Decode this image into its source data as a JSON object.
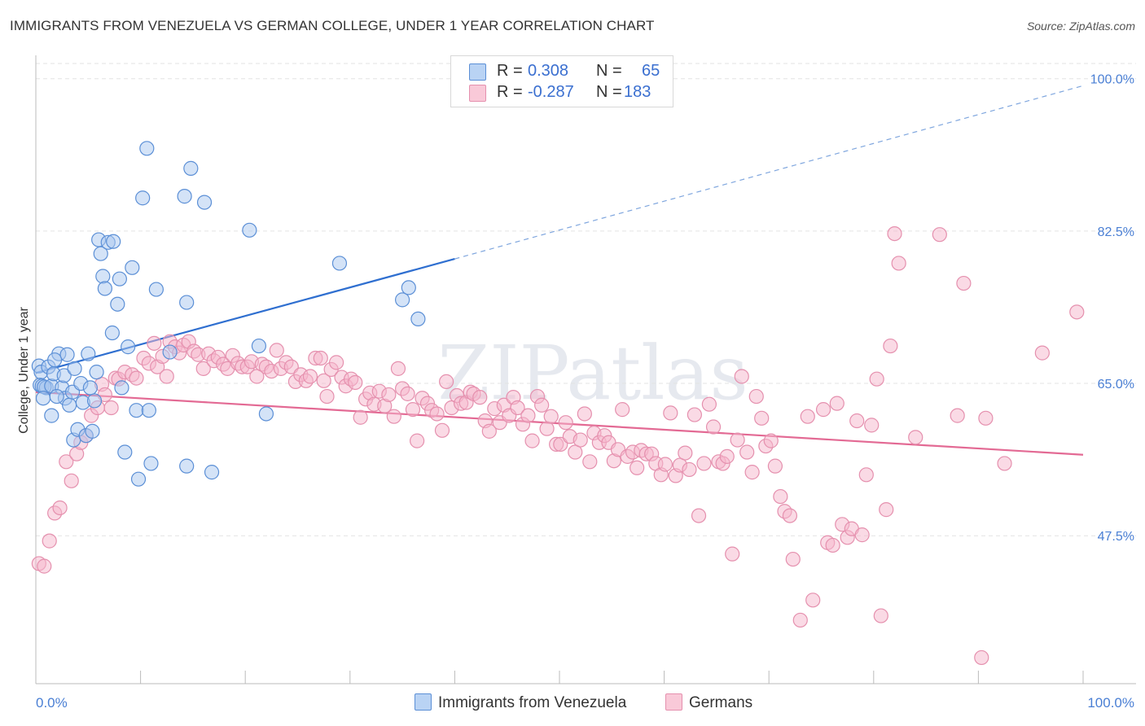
{
  "header": {
    "title": "IMMIGRANTS FROM VENEZUELA VS GERMAN COLLEGE, UNDER 1 YEAR CORRELATION CHART",
    "source": "Source: ZipAtlas.com"
  },
  "legend": {
    "r_label": "R =",
    "n_label": "N =",
    "rows": [
      {
        "r": "0.308",
        "n": "65"
      },
      {
        "r": "-0.287",
        "n": "183"
      }
    ]
  },
  "bottom_legend": [
    "Immigrants from Venezuela",
    "Germans"
  ],
  "colors": {
    "blue_fill": "#a9c8f0",
    "blue_stroke": "#5b8fd6",
    "blue_line": "#2f6fd0",
    "pink_fill": "#f6b6cb",
    "pink_stroke": "#e590ae",
    "pink_line": "#e36a94",
    "tick_text": "#4a7fd4"
  },
  "chart_data": {
    "type": "scatter",
    "title": "IMMIGRANTS FROM VENEZUELA VS GERMAN COLLEGE, UNDER 1 YEAR CORRELATION CHART",
    "xlabel": "",
    "ylabel": "College, Under 1 year",
    "xlim": [
      0,
      100
    ],
    "ylim": [
      30.5,
      102.5
    ],
    "x_tick_labels": [
      "0.0%",
      "100.0%"
    ],
    "y_ticks": [
      47.5,
      65.0,
      82.5,
      100.0
    ],
    "y_tick_labels": [
      "47.5%",
      "65.0%",
      "82.5%",
      "100.0%"
    ],
    "grid": true,
    "watermark": "ZIPatlas",
    "series": [
      {
        "name": "Immigrants from Venezuela",
        "r": 0.308,
        "n": 65,
        "trend": {
          "x": [
            0,
            40
          ],
          "y": [
            66.2,
            79.3
          ],
          "dashed_to": [
            100,
            99.2
          ]
        },
        "points": [
          [
            0.3,
            67.0
          ],
          [
            0.5,
            66.3
          ],
          [
            0.4,
            64.8
          ],
          [
            0.6,
            64.7
          ],
          [
            1.0,
            64.5
          ],
          [
            0.8,
            64.6
          ],
          [
            1.2,
            66.9
          ],
          [
            1.5,
            64.7
          ],
          [
            1.7,
            66.1
          ],
          [
            1.5,
            61.3
          ],
          [
            2.2,
            68.4
          ],
          [
            1.8,
            67.7
          ],
          [
            2.5,
            64.5
          ],
          [
            2.7,
            65.9
          ],
          [
            2.8,
            63.3
          ],
          [
            3.0,
            68.3
          ],
          [
            3.2,
            62.5
          ],
          [
            3.5,
            64.0
          ],
          [
            3.7,
            66.7
          ],
          [
            3.6,
            58.5
          ],
          [
            4.0,
            59.7
          ],
          [
            4.3,
            65.0
          ],
          [
            4.5,
            62.8
          ],
          [
            4.8,
            59.0
          ],
          [
            5.0,
            68.4
          ],
          [
            5.2,
            64.5
          ],
          [
            5.4,
            59.5
          ],
          [
            5.6,
            63.0
          ],
          [
            6.0,
            81.5
          ],
          [
            6.2,
            79.9
          ],
          [
            6.4,
            77.3
          ],
          [
            6.6,
            75.9
          ],
          [
            6.9,
            81.2
          ],
          [
            7.4,
            81.3
          ],
          [
            7.3,
            70.8
          ],
          [
            8.0,
            77.0
          ],
          [
            7.8,
            74.1
          ],
          [
            8.2,
            64.5
          ],
          [
            8.5,
            57.1
          ],
          [
            8.8,
            69.2
          ],
          [
            9.2,
            78.3
          ],
          [
            9.8,
            54.0
          ],
          [
            9.6,
            61.9
          ],
          [
            10.2,
            86.3
          ],
          [
            10.6,
            92.0
          ],
          [
            10.8,
            61.9
          ],
          [
            11.0,
            55.8
          ],
          [
            11.5,
            75.8
          ],
          [
            12.8,
            68.6
          ],
          [
            14.2,
            86.5
          ],
          [
            14.4,
            55.5
          ],
          [
            14.4,
            74.3
          ],
          [
            14.8,
            89.7
          ],
          [
            16.1,
            85.8
          ],
          [
            16.8,
            54.8
          ],
          [
            20.4,
            82.6
          ],
          [
            21.3,
            69.3
          ],
          [
            22.0,
            61.5
          ],
          [
            29.0,
            78.8
          ],
          [
            35.0,
            74.6
          ],
          [
            35.6,
            76.0
          ],
          [
            36.5,
            72.4
          ],
          [
            0.7,
            63.3
          ],
          [
            2.0,
            63.5
          ],
          [
            5.8,
            66.3
          ]
        ]
      },
      {
        "name": "Germans",
        "r": -0.287,
        "n": 183,
        "trend": {
          "x": [
            0,
            100
          ],
          "y": [
            64.0,
            56.8
          ]
        },
        "points": [
          [
            0.3,
            44.3
          ],
          [
            0.8,
            44.0
          ],
          [
            1.3,
            46.9
          ],
          [
            1.8,
            50.1
          ],
          [
            2.3,
            50.7
          ],
          [
            2.9,
            56.0
          ],
          [
            3.4,
            53.8
          ],
          [
            3.9,
            56.9
          ],
          [
            4.3,
            58.2
          ],
          [
            4.8,
            59.0
          ],
          [
            5.3,
            61.3
          ],
          [
            5.9,
            62.2
          ],
          [
            6.3,
            64.9
          ],
          [
            6.6,
            63.7
          ],
          [
            7.2,
            62.2
          ],
          [
            7.6,
            65.6
          ],
          [
            7.9,
            65.5
          ],
          [
            8.5,
            66.3
          ],
          [
            9.2,
            66.0
          ],
          [
            9.6,
            65.6
          ],
          [
            10.3,
            67.9
          ],
          [
            10.8,
            67.3
          ],
          [
            11.3,
            69.6
          ],
          [
            11.6,
            66.9
          ],
          [
            12.1,
            68.1
          ],
          [
            12.5,
            65.8
          ],
          [
            12.8,
            69.8
          ],
          [
            13.3,
            69.2
          ],
          [
            13.7,
            68.5
          ],
          [
            14.1,
            69.4
          ],
          [
            14.6,
            69.8
          ],
          [
            15.1,
            68.7
          ],
          [
            15.5,
            68.3
          ],
          [
            16.0,
            66.7
          ],
          [
            16.5,
            68.4
          ],
          [
            17.0,
            67.6
          ],
          [
            17.4,
            68.0
          ],
          [
            17.9,
            67.2
          ],
          [
            18.3,
            66.7
          ],
          [
            18.8,
            68.2
          ],
          [
            19.3,
            67.3
          ],
          [
            19.7,
            66.9
          ],
          [
            20.2,
            66.9
          ],
          [
            20.6,
            67.5
          ],
          [
            21.1,
            65.8
          ],
          [
            21.6,
            67.2
          ],
          [
            22.0,
            66.9
          ],
          [
            22.5,
            66.4
          ],
          [
            23.0,
            68.8
          ],
          [
            23.4,
            66.7
          ],
          [
            23.9,
            67.4
          ],
          [
            24.4,
            66.9
          ],
          [
            24.8,
            65.2
          ],
          [
            25.3,
            66.0
          ],
          [
            25.8,
            65.3
          ],
          [
            26.2,
            65.8
          ],
          [
            26.7,
            67.9
          ],
          [
            27.2,
            67.9
          ],
          [
            27.5,
            65.3
          ],
          [
            27.8,
            63.5
          ],
          [
            28.2,
            66.6
          ],
          [
            28.7,
            67.4
          ],
          [
            29.2,
            65.7
          ],
          [
            29.6,
            64.7
          ],
          [
            30.1,
            65.5
          ],
          [
            30.5,
            65.1
          ],
          [
            31.0,
            61.1
          ],
          [
            31.5,
            63.2
          ],
          [
            31.9,
            63.9
          ],
          [
            32.3,
            62.6
          ],
          [
            32.8,
            64.1
          ],
          [
            33.3,
            62.4
          ],
          [
            33.7,
            63.7
          ],
          [
            34.2,
            61.2
          ],
          [
            34.6,
            66.7
          ],
          [
            35.0,
            64.4
          ],
          [
            35.5,
            63.8
          ],
          [
            36.0,
            62.0
          ],
          [
            36.4,
            58.4
          ],
          [
            36.9,
            63.3
          ],
          [
            37.4,
            62.7
          ],
          [
            37.8,
            61.9
          ],
          [
            38.3,
            61.5
          ],
          [
            38.8,
            59.6
          ],
          [
            39.2,
            65.2
          ],
          [
            39.7,
            62.2
          ],
          [
            40.2,
            63.6
          ],
          [
            40.6,
            62.7
          ],
          [
            41.1,
            62.8
          ],
          [
            41.5,
            64.0
          ],
          [
            41.8,
            63.8
          ],
          [
            42.4,
            63.4
          ],
          [
            42.9,
            60.7
          ],
          [
            43.3,
            59.5
          ],
          [
            43.8,
            62.1
          ],
          [
            44.3,
            60.5
          ],
          [
            44.7,
            62.5
          ],
          [
            45.2,
            61.3
          ],
          [
            45.6,
            63.4
          ],
          [
            46.0,
            62.2
          ],
          [
            46.5,
            60.3
          ],
          [
            47.0,
            61.3
          ],
          [
            47.4,
            58.4
          ],
          [
            47.9,
            63.5
          ],
          [
            48.3,
            62.5
          ],
          [
            48.8,
            59.8
          ],
          [
            49.2,
            61.2
          ],
          [
            49.7,
            58.0
          ],
          [
            50.1,
            58.0
          ],
          [
            50.6,
            60.5
          ],
          [
            51.0,
            58.9
          ],
          [
            51.5,
            57.1
          ],
          [
            52.0,
            58.5
          ],
          [
            52.4,
            61.5
          ],
          [
            52.9,
            56.0
          ],
          [
            53.3,
            59.3
          ],
          [
            53.8,
            58.2
          ],
          [
            54.3,
            59.0
          ],
          [
            54.7,
            58.2
          ],
          [
            55.2,
            56.1
          ],
          [
            55.6,
            57.4
          ],
          [
            56.0,
            62.0
          ],
          [
            56.5,
            56.6
          ],
          [
            57.0,
            57.1
          ],
          [
            57.4,
            55.3
          ],
          [
            57.8,
            57.3
          ],
          [
            58.3,
            56.9
          ],
          [
            58.8,
            56.9
          ],
          [
            59.2,
            55.8
          ],
          [
            59.7,
            54.5
          ],
          [
            60.1,
            55.7
          ],
          [
            60.6,
            61.6
          ],
          [
            61.1,
            54.4
          ],
          [
            61.5,
            55.6
          ],
          [
            62.0,
            57.0
          ],
          [
            62.4,
            55.1
          ],
          [
            62.9,
            61.4
          ],
          [
            63.3,
            49.8
          ],
          [
            63.8,
            55.8
          ],
          [
            64.3,
            62.6
          ],
          [
            64.7,
            60.0
          ],
          [
            65.2,
            56.0
          ],
          [
            65.6,
            55.8
          ],
          [
            66.0,
            56.6
          ],
          [
            66.5,
            45.4
          ],
          [
            67.0,
            58.5
          ],
          [
            67.4,
            65.8
          ],
          [
            67.9,
            57.1
          ],
          [
            68.4,
            54.8
          ],
          [
            68.8,
            63.5
          ],
          [
            69.3,
            61.0
          ],
          [
            69.7,
            57.8
          ],
          [
            70.2,
            58.4
          ],
          [
            70.6,
            55.5
          ],
          [
            71.1,
            52.0
          ],
          [
            71.5,
            50.3
          ],
          [
            72.0,
            49.8
          ],
          [
            72.3,
            44.8
          ],
          [
            73.0,
            37.8
          ],
          [
            73.7,
            61.2
          ],
          [
            74.2,
            40.1
          ],
          [
            75.2,
            62.0
          ],
          [
            75.6,
            46.7
          ],
          [
            76.1,
            46.4
          ],
          [
            76.5,
            62.7
          ],
          [
            77.0,
            48.8
          ],
          [
            77.5,
            47.3
          ],
          [
            77.9,
            48.3
          ],
          [
            78.4,
            60.7
          ],
          [
            78.9,
            47.6
          ],
          [
            79.3,
            54.5
          ],
          [
            79.8,
            60.2
          ],
          [
            80.3,
            65.5
          ],
          [
            80.7,
            38.3
          ],
          [
            81.2,
            50.5
          ],
          [
            81.6,
            69.3
          ],
          [
            82.0,
            82.2
          ],
          [
            82.4,
            78.8
          ],
          [
            84.0,
            58.8
          ],
          [
            86.3,
            82.1
          ],
          [
            88.0,
            61.3
          ],
          [
            88.6,
            76.5
          ],
          [
            90.3,
            33.5
          ],
          [
            90.7,
            61.0
          ],
          [
            92.5,
            55.8
          ],
          [
            96.1,
            68.5
          ],
          [
            99.4,
            73.2
          ]
        ]
      }
    ]
  }
}
